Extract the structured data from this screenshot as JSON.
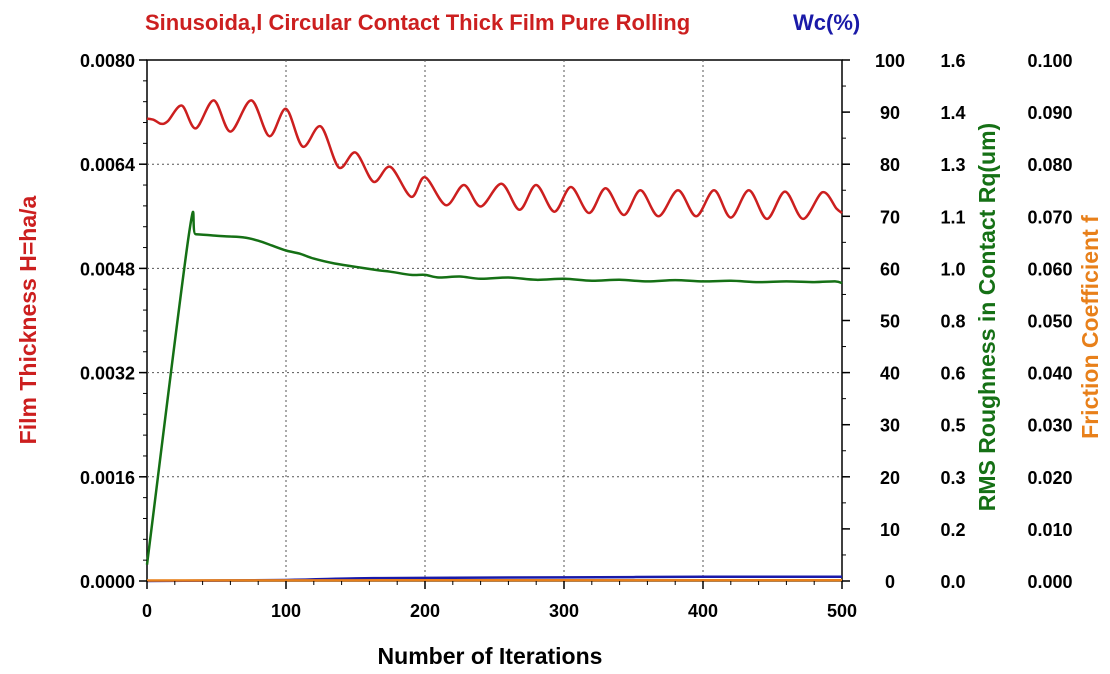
{
  "chart_data": {
    "type": "line",
    "title": "Sinusoida,l Circular Contact Thick Film Pure Rolling",
    "title_suffix": "Wc(%)",
    "xlabel": "Number of Iterations",
    "xlim": [
      0,
      500
    ],
    "x_ticks": [
      "0",
      "100",
      "200",
      "300",
      "400",
      "500"
    ],
    "grid": true,
    "axes": {
      "left": {
        "label": "Film Thickness H=ha/a",
        "range": [
          0,
          0.008
        ],
        "ticks": [
          "0.0000",
          "0.0016",
          "0.0032",
          "0.0048",
          "0.0064",
          "0.0080"
        ],
        "color": "#cc1f1f"
      },
      "wc": {
        "range": [
          0,
          100
        ],
        "ticks": [
          "0",
          "10",
          "20",
          "30",
          "40",
          "50",
          "60",
          "70",
          "80",
          "90",
          "100"
        ],
        "color": "#1a1aa8"
      },
      "rq": {
        "label": "RMS Roughness in Contact Rq(um)",
        "range": [
          0,
          1.6
        ],
        "ticks": [
          "0.0",
          "0.2",
          "0.3",
          "0.5",
          "0.6",
          "0.8",
          "1.0",
          "1.1",
          "1.3",
          "1.4",
          "1.6"
        ],
        "color": "#157015"
      },
      "f": {
        "label": "Friction Coefficient f",
        "range": [
          0,
          0.1
        ],
        "ticks": [
          "0.000",
          "0.010",
          "0.020",
          "0.030",
          "0.040",
          "0.050",
          "0.060",
          "0.070",
          "0.080",
          "0.090",
          "0.100"
        ],
        "color": "#e8801a"
      }
    },
    "series": [
      {
        "axis": "left",
        "color": "#cc1f1f",
        "points": [
          [
            0,
            0.0071
          ],
          [
            5,
            0.00708
          ],
          [
            10,
            0.00702
          ],
          [
            15,
            0.00706
          ],
          [
            25,
            0.0073
          ],
          [
            35,
            0.00695
          ],
          [
            48,
            0.00738
          ],
          [
            60,
            0.0069
          ],
          [
            75,
            0.00738
          ],
          [
            88,
            0.00683
          ],
          [
            100,
            0.00725
          ],
          [
            112,
            0.00667
          ],
          [
            125,
            0.00698
          ],
          [
            138,
            0.00635
          ],
          [
            150,
            0.00658
          ],
          [
            163,
            0.00613
          ],
          [
            175,
            0.00636
          ],
          [
            190,
            0.0059
          ],
          [
            200,
            0.0062
          ],
          [
            215,
            0.00577
          ],
          [
            228,
            0.00608
          ],
          [
            240,
            0.00575
          ],
          [
            255,
            0.0061
          ],
          [
            268,
            0.0057
          ],
          [
            280,
            0.00608
          ],
          [
            293,
            0.00567
          ],
          [
            305,
            0.00605
          ],
          [
            318,
            0.00565
          ],
          [
            330,
            0.00603
          ],
          [
            343,
            0.00562
          ],
          [
            355,
            0.006
          ],
          [
            368,
            0.0056
          ],
          [
            382,
            0.006
          ],
          [
            395,
            0.0056
          ],
          [
            408,
            0.006
          ],
          [
            420,
            0.00558
          ],
          [
            433,
            0.006
          ],
          [
            446,
            0.00556
          ],
          [
            459,
            0.00598
          ],
          [
            472,
            0.00556
          ],
          [
            486,
            0.00597
          ],
          [
            496,
            0.00572
          ],
          [
            500,
            0.00565
          ]
        ]
      },
      {
        "axis": "rq",
        "color": "#157015",
        "points": [
          [
            0,
            0.05
          ],
          [
            30,
            1.06
          ],
          [
            35,
            1.065
          ],
          [
            50,
            1.06
          ],
          [
            60,
            1.058
          ],
          [
            70,
            1.055
          ],
          [
            80,
            1.045
          ],
          [
            90,
            1.03
          ],
          [
            100,
            1.015
          ],
          [
            110,
            1.005
          ],
          [
            120,
            0.99
          ],
          [
            135,
            0.975
          ],
          [
            150,
            0.965
          ],
          [
            165,
            0.955
          ],
          [
            175,
            0.95
          ],
          [
            190,
            0.94
          ],
          [
            200,
            0.94
          ],
          [
            210,
            0.932
          ],
          [
            225,
            0.935
          ],
          [
            240,
            0.928
          ],
          [
            260,
            0.932
          ],
          [
            280,
            0.925
          ],
          [
            300,
            0.928
          ],
          [
            320,
            0.922
          ],
          [
            340,
            0.925
          ],
          [
            360,
            0.92
          ],
          [
            380,
            0.924
          ],
          [
            400,
            0.92
          ],
          [
            420,
            0.922
          ],
          [
            440,
            0.918
          ],
          [
            460,
            0.92
          ],
          [
            480,
            0.918
          ],
          [
            495,
            0.92
          ],
          [
            500,
            0.915
          ]
        ]
      },
      {
        "axis": "wc",
        "color": "#1a1aa8",
        "points": [
          [
            0,
            0
          ],
          [
            100,
            0.2
          ],
          [
            150,
            0.5
          ],
          [
            200,
            0.6
          ],
          [
            300,
            0.7
          ],
          [
            400,
            0.8
          ],
          [
            500,
            0.8
          ]
        ]
      },
      {
        "axis": "f",
        "color": "#e8801a",
        "points": [
          [
            0,
            0.0001
          ],
          [
            100,
            0.00012
          ],
          [
            200,
            0.00013
          ],
          [
            300,
            0.00014
          ],
          [
            400,
            0.00014
          ],
          [
            500,
            0.00015
          ]
        ]
      }
    ]
  }
}
